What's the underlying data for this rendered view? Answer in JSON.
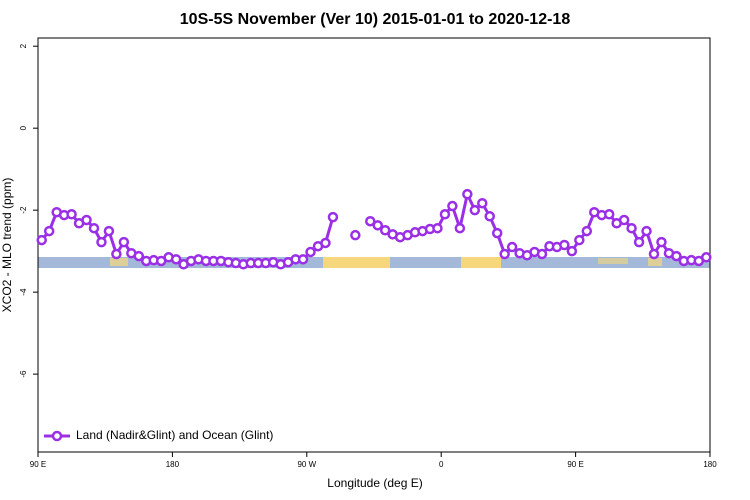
{
  "chart_data": {
    "type": "line",
    "title": "10S-5S November (Ver 10)   2015-01-01 to 2020-12-18",
    "xlabel": "Longitude (deg E)",
    "ylabel": "XCO2 - MLO trend (ppm)",
    "xlim": [
      90,
      540
    ],
    "ylim": [
      -7.9,
      2.2
    ],
    "xticks": [
      {
        "value": 90,
        "label": "90 E"
      },
      180,
      {
        "value": 270,
        "label": "90 W"
      },
      {
        "value": 360,
        "label": "0"
      },
      {
        "value": 450,
        "label": "90 E"
      },
      {
        "value": 540,
        "label": "180"
      }
    ],
    "yticks": [
      2,
      0,
      -2,
      -4,
      -6
    ],
    "legend": "bottom-left",
    "x": [
      92.5,
      97.5,
      102.5,
      107.5,
      112.5,
      117.5,
      122.5,
      127.5,
      132.5,
      137.5,
      142.5,
      147.5,
      152.5,
      157.5,
      162.5,
      167.5,
      172.5,
      177.5,
      182.5,
      187.5,
      192.5,
      197.5,
      202.5,
      207.5,
      212.5,
      217.5,
      222.5,
      227.5,
      232.5,
      237.5,
      242.5,
      247.5,
      252.5,
      257.5,
      262.5,
      267.5,
      272.5,
      277.5,
      282.5,
      287.5,
      292.5,
      297.5,
      302.5,
      307.5,
      312.5,
      317.5,
      322.5,
      327.5,
      332.5,
      337.5,
      342.5,
      347.5,
      352.5,
      357.5,
      362.5,
      367.5,
      372.5,
      377.5,
      382.5,
      387.5,
      392.5,
      397.5,
      402.5,
      407.5,
      412.5,
      417.5,
      422.5,
      427.5,
      432.5,
      437.5,
      442.5,
      447.5,
      452.5,
      457.5,
      462.5,
      467.5,
      472.5,
      477.5,
      482.5,
      487.5,
      492.5,
      497.5,
      502.5,
      507.5,
      512.5,
      517.5,
      522.5,
      527.5,
      532.5,
      537.5
    ],
    "series": [
      {
        "name": "Land (Nadir&Glint) and Ocean (Glint)",
        "color": "#9b2fe6",
        "values": [
          -2.73,
          -2.51,
          -2.05,
          -2.12,
          -2.1,
          -2.32,
          -2.24,
          -2.44,
          -2.78,
          -2.51,
          -3.07,
          -2.78,
          -3.05,
          -3.12,
          -3.24,
          -3.22,
          -3.24,
          -3.15,
          -3.2,
          -3.32,
          -3.24,
          -3.2,
          -3.24,
          -3.24,
          -3.24,
          -3.27,
          -3.29,
          -3.32,
          -3.29,
          -3.29,
          -3.29,
          -3.27,
          -3.32,
          -3.27,
          -3.2,
          -3.2,
          -3.02,
          -2.88,
          -2.8,
          -2.17,
          null,
          null,
          -2.61,
          null,
          -2.27,
          -2.37,
          -2.49,
          -2.59,
          -2.66,
          -2.61,
          -2.54,
          -2.51,
          -2.46,
          -2.44,
          -2.1,
          -1.9,
          -2.44,
          -1.61,
          -2.0,
          -1.83,
          -2.15,
          -2.56,
          -3.07,
          -2.9,
          -3.05,
          -3.1,
          -3.02,
          -3.07,
          -2.88,
          -2.9,
          -2.85,
          -3.0,
          -2.73,
          -2.51,
          -2.05,
          -2.12,
          -2.1,
          -2.32,
          -2.24,
          -2.44,
          -2.78,
          -2.51,
          -3.07,
          -2.78,
          -3.05,
          -3.12,
          -3.24,
          -3.22,
          -3.24,
          -3.15
        ]
      }
    ]
  }
}
